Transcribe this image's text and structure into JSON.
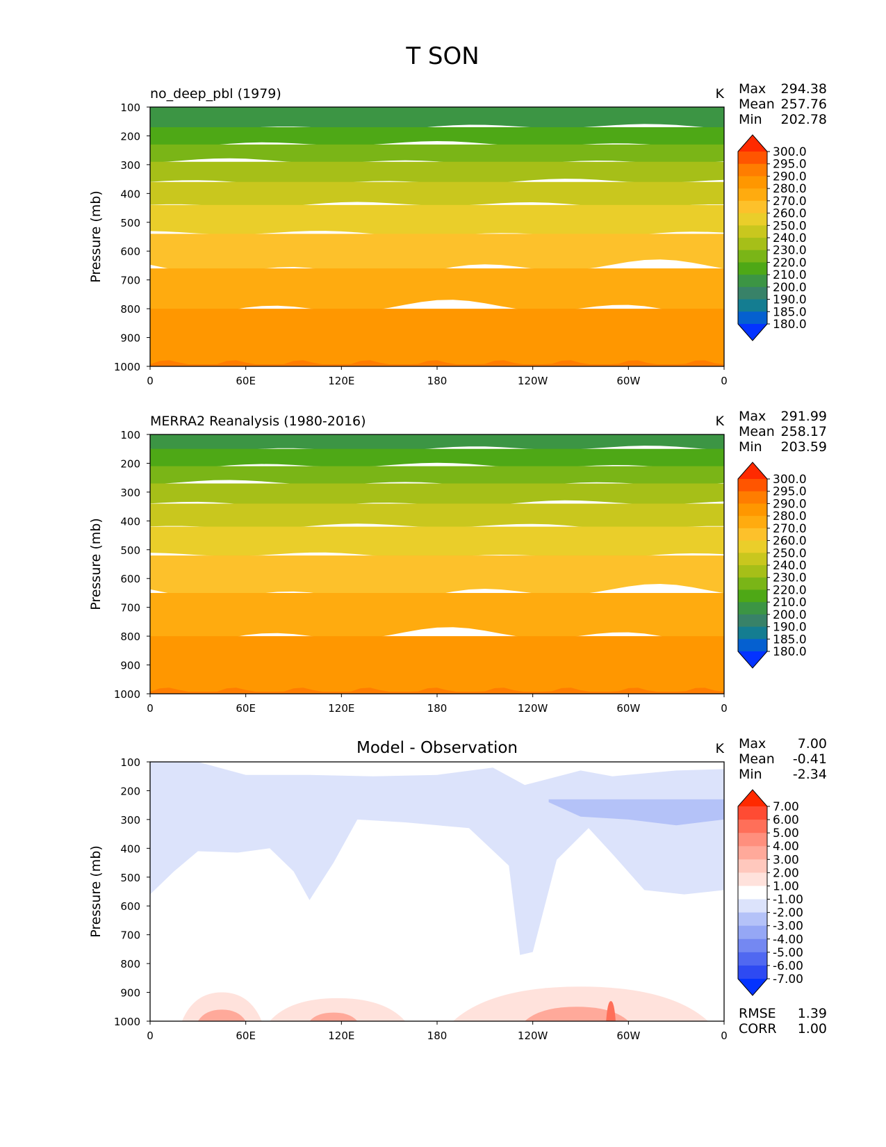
{
  "figure_title": "T SON",
  "chart_data": [
    {
      "type": "heatmap",
      "title": "no_deep_pbl (1979)",
      "units": "K",
      "xlabel": "",
      "ylabel": "Pressure (mb)",
      "x_ticks": [
        "0",
        "60E",
        "120E",
        "180",
        "120W",
        "60W",
        "0"
      ],
      "y_ticks": [
        "100",
        "200",
        "300",
        "400",
        "500",
        "600",
        "700",
        "800",
        "900",
        "1000"
      ],
      "ylim": [
        1000,
        100
      ],
      "stats": [
        {
          "label": "Max",
          "value": "294.38"
        },
        {
          "label": "Mean",
          "value": "257.76"
        },
        {
          "label": "Min",
          "value": "202.78"
        }
      ],
      "colorbar": {
        "labels": [
          "300.0",
          "295.0",
          "290.0",
          "280.0",
          "270.0",
          "260.0",
          "250.0",
          "240.0",
          "230.0",
          "220.0",
          "210.0",
          "200.0",
          "190.0",
          "185.0",
          "180.0"
        ],
        "colors": [
          "#ff2a00",
          "#ff5500",
          "#ff7d00",
          "#ff9700",
          "#ffab0f",
          "#fdc12b",
          "#eace2a",
          "#c9c71e",
          "#a6bf18",
          "#7ab517",
          "#4ea816",
          "#3c9544",
          "#388268",
          "#147d91",
          "#0560d0",
          "#0433ff"
        ]
      },
      "level_pressures_mb": [
        170,
        230,
        290,
        360,
        440,
        540,
        660,
        800
      ],
      "layer_colors": [
        "#3c9544",
        "#4ea816",
        "#7ab517",
        "#a6bf18",
        "#c9c71e",
        "#eace2a",
        "#fdc12b",
        "#ffab0f",
        "#ff9700"
      ]
    },
    {
      "type": "heatmap",
      "title": "MERRA2 Reanalysis (1980-2016)",
      "units": "K",
      "xlabel": "",
      "ylabel": "Pressure (mb)",
      "x_ticks": [
        "0",
        "60E",
        "120E",
        "180",
        "120W",
        "60W",
        "0"
      ],
      "y_ticks": [
        "100",
        "200",
        "300",
        "400",
        "500",
        "600",
        "700",
        "800",
        "900",
        "1000"
      ],
      "ylim": [
        1000,
        100
      ],
      "stats": [
        {
          "label": "Max",
          "value": "291.99"
        },
        {
          "label": "Mean",
          "value": "258.17"
        },
        {
          "label": "Min",
          "value": "203.59"
        }
      ],
      "colorbar": {
        "labels": [
          "300.0",
          "295.0",
          "290.0",
          "280.0",
          "270.0",
          "260.0",
          "250.0",
          "240.0",
          "230.0",
          "220.0",
          "210.0",
          "200.0",
          "190.0",
          "185.0",
          "180.0"
        ],
        "colors": [
          "#ff2a00",
          "#ff5500",
          "#ff7d00",
          "#ff9700",
          "#ffab0f",
          "#fdc12b",
          "#eace2a",
          "#c9c71e",
          "#a6bf18",
          "#7ab517",
          "#4ea816",
          "#3c9544",
          "#388268",
          "#147d91",
          "#0560d0",
          "#0433ff"
        ]
      },
      "level_pressures_mb": [
        150,
        210,
        270,
        340,
        420,
        520,
        650,
        800
      ],
      "layer_colors": [
        "#3c9544",
        "#4ea816",
        "#7ab517",
        "#a6bf18",
        "#c9c71e",
        "#eace2a",
        "#fdc12b",
        "#ffab0f",
        "#ff9700"
      ]
    },
    {
      "type": "heatmap",
      "title": "Model - Observation",
      "units": "K",
      "xlabel": "",
      "ylabel": "Pressure (mb)",
      "x_ticks": [
        "0",
        "60E",
        "120E",
        "180",
        "120W",
        "60W",
        "0"
      ],
      "y_ticks": [
        "100",
        "200",
        "300",
        "400",
        "500",
        "600",
        "700",
        "800",
        "900",
        "1000"
      ],
      "ylim": [
        1000,
        100
      ],
      "stats": [
        {
          "label": "Max",
          "value": "7.00"
        },
        {
          "label": "Mean",
          "value": "-0.41"
        },
        {
          "label": "Min",
          "value": "-2.34"
        }
      ],
      "extra_stats": [
        {
          "label": "RMSE",
          "value": "1.39"
        },
        {
          "label": "CORR",
          "value": "1.00"
        }
      ],
      "colorbar": {
        "labels": [
          "7.00",
          "6.00",
          "5.00",
          "4.00",
          "3.00",
          "2.00",
          "1.00",
          "-1.00",
          "-2.00",
          "-3.00",
          "-4.00",
          "-5.00",
          "-6.00",
          "-7.00"
        ],
        "colors": [
          "#ff2a00",
          "#ff4b33",
          "#ff6f59",
          "#ff8f7d",
          "#ffa99a",
          "#ffc8bd",
          "#ffe2dc",
          "#ffffff",
          "#dce3fb",
          "#b4c2f8",
          "#95a7f5",
          "#7488f2",
          "#5068f1",
          "#2e4af2",
          "#0433ff"
        ]
      },
      "regions": [
        {
          "longitudes": [
            0,
            15,
            30,
            55,
            75,
            90,
            100,
            115,
            130,
            160,
            200,
            225,
            232,
            240,
            255,
            275,
            290,
            310,
            335,
            360
          ],
          "pressure_mb": [
            560,
            480,
            410,
            415,
            400,
            480,
            580,
            450,
            300,
            310,
            330,
            460,
            770,
            760,
            440,
            330,
            420,
            545,
            560,
            545
          ],
          "top_mb": 100,
          "color": "#dce3fb"
        },
        {
          "longitudes": [
            30,
            60,
            100,
            140,
            180,
            215,
            235,
            270,
            290,
            330,
            360
          ],
          "pressure_mb": [
            100,
            145,
            145,
            150,
            145,
            120,
            180,
            130,
            150,
            130,
            125
          ],
          "top_mb": 100,
          "color": "#ffffff"
        },
        {
          "longitudes": [
            250,
            270,
            300,
            330,
            360
          ],
          "pressure_mb": [
            240,
            290,
            300,
            320,
            300
          ],
          "top_mb": 230,
          "color": "#b4c2f8"
        }
      ],
      "warm_anomalies": [
        {
          "lon_start": 20,
          "lon_end": 70,
          "top_mb": 900,
          "color": "#ffe2dc"
        },
        {
          "lon_start": 75,
          "lon_end": 160,
          "top_mb": 920,
          "color": "#ffe2dc"
        },
        {
          "lon_start": 190,
          "lon_end": 350,
          "top_mb": 880,
          "color": "#ffe2dc"
        },
        {
          "lon_start": 30,
          "lon_end": 60,
          "top_mb": 960,
          "color": "#ffa99a"
        },
        {
          "lon_start": 100,
          "lon_end": 130,
          "top_mb": 970,
          "color": "#ffa99a"
        },
        {
          "lon_start": 235,
          "lon_end": 300,
          "top_mb": 950,
          "color": "#ffa99a"
        },
        {
          "lon_start": 286,
          "lon_end": 292,
          "top_mb": 930,
          "color": "#ff6f59"
        }
      ]
    }
  ]
}
